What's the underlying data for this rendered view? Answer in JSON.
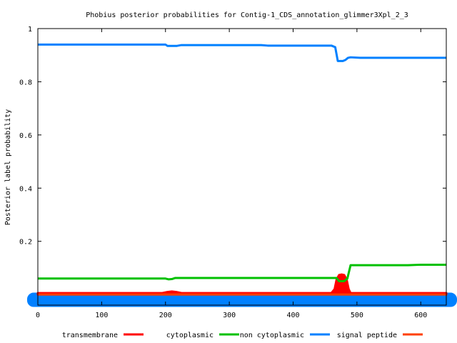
{
  "chart_data": {
    "type": "line",
    "title": "Phobius posterior probabilities for Contig-1_CDS_annotation_glimmer3Xpl_2_3",
    "xlabel": "",
    "ylabel": "Posterior label probability",
    "xlim": [
      0,
      640
    ],
    "ylim": [
      -0.04,
      1.0
    ],
    "x_ticks": [
      0,
      100,
      200,
      300,
      400,
      500,
      600
    ],
    "y_ticks": [
      0.2,
      0.4,
      0.6,
      0.8,
      1
    ],
    "grid": false,
    "legend_position": "bottom",
    "series": [
      {
        "name": "transmembrane",
        "color": "#ff0000",
        "style": "filled-bumps",
        "x": [
          0,
          195,
          203,
          210,
          217,
          225,
          460,
          465,
          468,
          472,
          476,
          480,
          484,
          487,
          490,
          640
        ],
        "y": [
          0,
          0,
          0.004,
          0.006,
          0.004,
          0,
          0,
          0.015,
          0.05,
          0.068,
          0.07,
          0.068,
          0.05,
          0.015,
          0,
          0
        ]
      },
      {
        "name": "cytoplasmic",
        "color": "#00c000",
        "x": [
          0,
          200,
          205,
          210,
          215,
          460,
          468,
          472,
          480,
          485,
          490,
          580,
          600,
          640
        ],
        "y": [
          0.06,
          0.06,
          0.057,
          0.058,
          0.062,
          0.062,
          0.062,
          0.05,
          0.05,
          0.06,
          0.11,
          0.11,
          0.112,
          0.112
        ]
      },
      {
        "name": "non cytoplasmic",
        "color": "#0080ff",
        "style": "thick-band",
        "x": [
          0,
          640
        ],
        "y": [
          -0.02,
          -0.02
        ]
      },
      {
        "name": "signal peptide",
        "color": "#ff4000",
        "x": [
          0,
          640
        ],
        "y": [
          0,
          0
        ]
      },
      {
        "name": "",
        "color": "#0080ff",
        "x": [
          0,
          200,
          203,
          218,
          225,
          230,
          350,
          360,
          460,
          466,
          470,
          478,
          482,
          486,
          490,
          505,
          640
        ],
        "y": [
          0.94,
          0.94,
          0.935,
          0.935,
          0.938,
          0.938,
          0.938,
          0.936,
          0.936,
          0.93,
          0.878,
          0.878,
          0.882,
          0.89,
          0.892,
          0.89,
          0.89
        ]
      }
    ]
  }
}
